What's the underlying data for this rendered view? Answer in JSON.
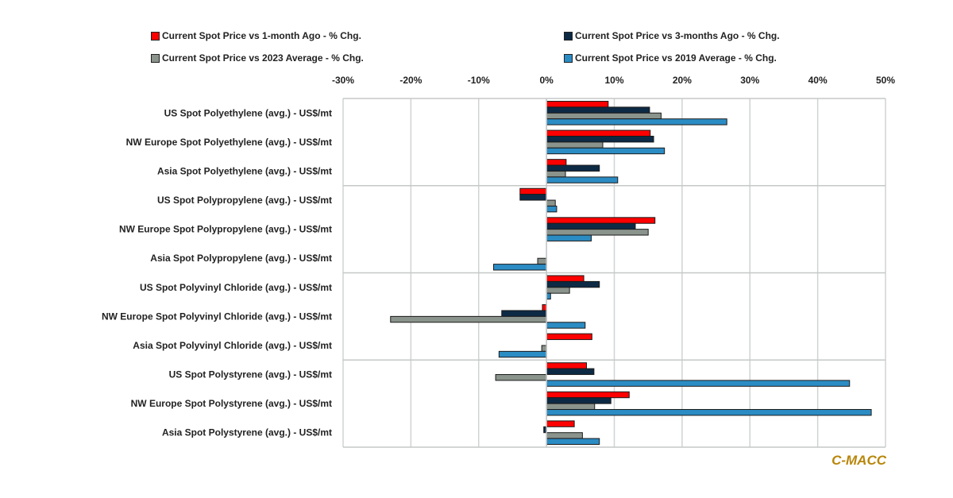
{
  "chart_data": {
    "type": "bar",
    "orientation": "horizontal",
    "categories": [
      "US Spot Polyethylene (avg.) - US$/mt",
      "NW Europe Spot Polyethylene (avg.) - US$/mt",
      "Asia Spot Polyethylene (avg.) - US$/mt",
      "US Spot Polypropylene (avg.) - US$/mt",
      "NW Europe Spot Polypropylene (avg.) - US$/mt",
      "Asia Spot Polypropylene (avg.) - US$/mt",
      "US Spot Polyvinyl Chloride (avg.) - US$/mt",
      "NW Europe Spot Polyvinyl Chloride (avg.)  - US$/mt",
      "Asia Spot Polyvinyl Chloride (avg.) - US$/mt",
      "US Spot Polystyrene (avg.) - US$/mt",
      "NW Europe Spot Polystyrene (avg.) - US$/mt",
      "Asia Spot Polystyrene (avg.) - US$/mt"
    ],
    "series": [
      {
        "name": "Current Spot Price vs 1-month Ago - % Chg.",
        "color": "#ff0000",
        "values": [
          9.1,
          15.3,
          2.9,
          -3.9,
          16.0,
          0,
          5.5,
          -0.6,
          6.7,
          5.9,
          12.2,
          4.1
        ]
      },
      {
        "name": "Current Spot Price vs 3-months Ago - % Chg.",
        "color": "#0d2a45",
        "values": [
          15.2,
          15.8,
          7.8,
          -3.9,
          13.1,
          0,
          7.8,
          -6.6,
          0,
          7.0,
          9.5,
          -0.4
        ]
      },
      {
        "name": "Current Spot Price vs 2023 Average - % Chg.",
        "color": "#8a938c",
        "values": [
          16.9,
          8.3,
          2.8,
          1.3,
          15.0,
          -1.3,
          3.4,
          -23.0,
          -0.7,
          -7.5,
          7.1,
          5.3
        ]
      },
      {
        "name": "Current Spot Price vs 2019 Average - % Chg.",
        "color": "#2b8cc4",
        "values": [
          26.6,
          17.4,
          10.5,
          1.5,
          6.6,
          -7.8,
          0.6,
          5.7,
          -7.0,
          44.7,
          47.9,
          7.8
        ]
      }
    ],
    "xlim": [
      -30,
      50
    ],
    "xticks": [
      "-30%",
      "-20%",
      "-10%",
      "0%",
      "10%",
      "20%",
      "30%",
      "40%",
      "50%"
    ],
    "tick_values": [
      -30,
      -20,
      -10,
      0,
      10,
      20,
      30,
      40,
      50
    ],
    "grid": true,
    "legend_placement": "top",
    "title": "",
    "xlabel": "",
    "ylabel": ""
  },
  "brand": "C-MACC"
}
